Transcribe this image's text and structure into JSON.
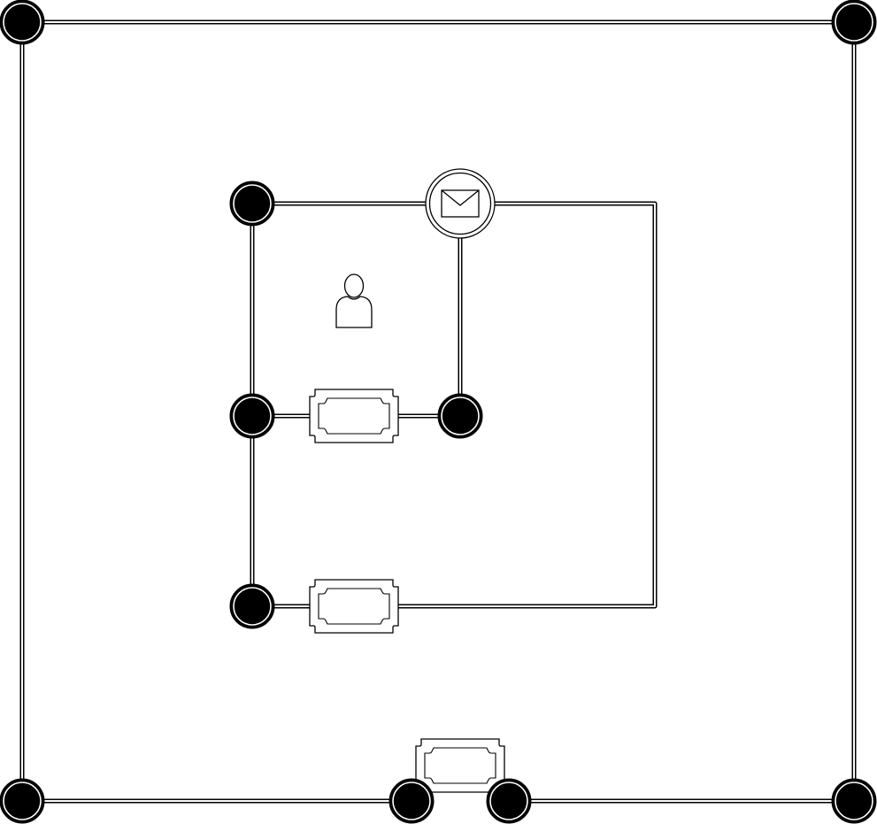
{
  "diagram": {
    "colors": {
      "stroke": "#000000",
      "background": "#ffffff",
      "node_fill": "#000000"
    },
    "icons": [
      "envelope-icon",
      "person-icon",
      "ticket-icon"
    ],
    "nodes": [
      {
        "id": "n-top-left"
      },
      {
        "id": "n-top-right"
      },
      {
        "id": "n-bottom-left"
      },
      {
        "id": "n-bottom-right"
      },
      {
        "id": "n-bottom-mid-left"
      },
      {
        "id": "n-bottom-mid-right"
      },
      {
        "id": "n-inner-top-left"
      },
      {
        "id": "n-inner-mid-left"
      },
      {
        "id": "n-inner-mid-right"
      },
      {
        "id": "n-inner-bottom-left"
      }
    ],
    "message_node": {
      "id": "n-message",
      "icon": "envelope-icon"
    },
    "edges": [
      [
        "n-top-left",
        "n-top-right"
      ],
      [
        "n-top-left",
        "n-bottom-left"
      ],
      [
        "n-top-right",
        "n-bottom-right"
      ],
      [
        "n-bottom-left",
        "n-bottom-mid-left"
      ],
      [
        "n-bottom-mid-right",
        "n-bottom-right"
      ],
      [
        "n-inner-top-left",
        "n-message"
      ],
      [
        "n-inner-top-left",
        "n-inner-mid-left"
      ],
      [
        "n-inner-mid-left",
        "n-inner-bottom-left"
      ],
      [
        "n-message",
        "n-inner-mid-right"
      ],
      [
        "n-inner-mid-left",
        "n-inner-mid-right"
      ],
      [
        "n-message",
        "n-inner-bottom-left"
      ]
    ]
  }
}
